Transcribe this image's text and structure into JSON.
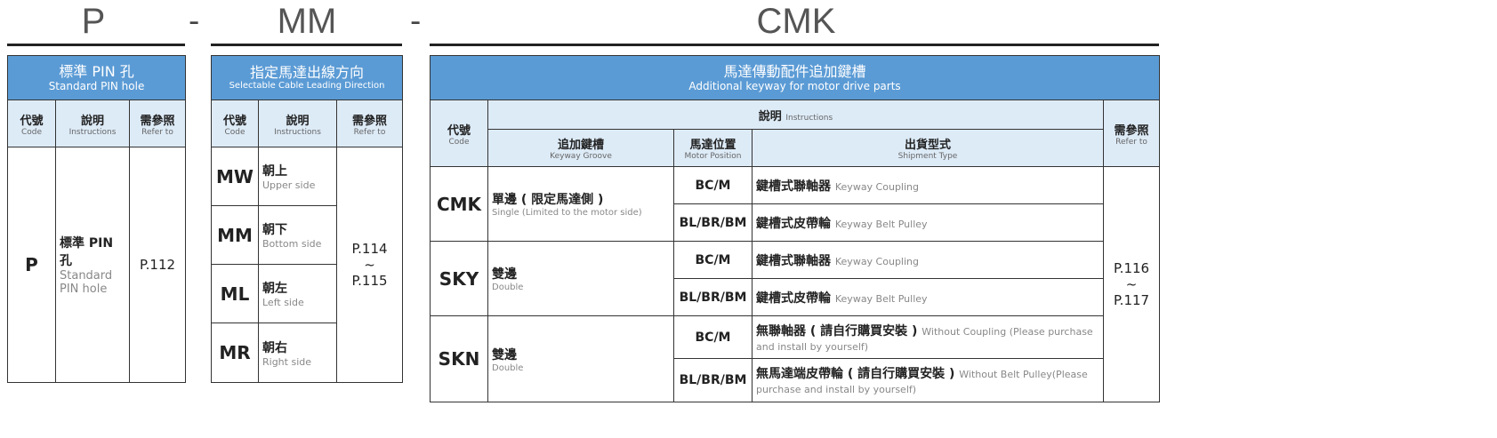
{
  "titles": {
    "p": "P",
    "mm": "MM",
    "cmk": "CMK",
    "dash": "-"
  },
  "t1": {
    "title_zh": "標準 PIN 孔",
    "title_en": "Standard PIN hole",
    "cols": [
      {
        "zh": "代號",
        "en": "Code"
      },
      {
        "zh": "說明",
        "en": "Instructions"
      },
      {
        "zh": "需參照",
        "en": "Refer to"
      }
    ],
    "row": {
      "code": "P",
      "zh": "標準 PIN 孔",
      "en": "Standard PIN hole",
      "ref": "P.112"
    }
  },
  "t2": {
    "title_zh": "指定馬達出線方向",
    "title_en": "Selectable Cable Leading Direction",
    "cols": [
      {
        "zh": "代號",
        "en": "Code"
      },
      {
        "zh": "說明",
        "en": "Instructions"
      },
      {
        "zh": "需參照",
        "en": "Refer to"
      }
    ],
    "rows": [
      {
        "code": "MW",
        "zh": "朝上",
        "en": "Upper side"
      },
      {
        "code": "MM",
        "zh": "朝下",
        "en": "Bottom side"
      },
      {
        "code": "ML",
        "zh": "朝左",
        "en": "Left side"
      },
      {
        "code": "MR",
        "zh": "朝右",
        "en": "Right side"
      }
    ],
    "ref": {
      "a": "P.114",
      "b": "~",
      "c": "P.115"
    }
  },
  "t3": {
    "title_zh": "馬達傳動配件追加鍵槽",
    "title_en": "Additional keyway for motor drive parts",
    "code": {
      "zh": "代號",
      "en": "Code"
    },
    "instr": {
      "zh": "說明",
      "en": "Instructions"
    },
    "refer": {
      "zh": "需參照",
      "en": "Refer to"
    },
    "sub": [
      {
        "zh": "追加鍵槽",
        "en": "Keyway Groove"
      },
      {
        "zh": "馬達位置",
        "en": "Motor Position"
      },
      {
        "zh": "出貨型式",
        "en": "Shipment Type"
      }
    ],
    "groups": [
      {
        "code": "CMK",
        "zh": "單邊 ( 限定馬達側 )",
        "en": "Single (Limited to the motor side)",
        "rows": [
          {
            "pos": "BC/M",
            "zh": "鍵槽式聯軸器",
            "en": "Keyway Coupling"
          },
          {
            "pos": "BL/BR/BM",
            "zh": "鍵槽式皮帶輪",
            "en": "Keyway Belt Pulley"
          }
        ]
      },
      {
        "code": "SKY",
        "zh": "雙邊",
        "en": "Double",
        "rows": [
          {
            "pos": "BC/M",
            "zh": "鍵槽式聯軸器",
            "en": "Keyway Coupling"
          },
          {
            "pos": "BL/BR/BM",
            "zh": "鍵槽式皮帶輪",
            "en": "Keyway Belt Pulley"
          }
        ]
      },
      {
        "code": "SKN",
        "zh": "雙邊",
        "en": "Double",
        "rows": [
          {
            "pos": "BC/M",
            "zh": "無聯軸器 ( 請自行購買安裝 )",
            "en": "Without Coupling (Please purchase and install by yourself)"
          },
          {
            "pos": "BL/BR/BM",
            "zh": "無馬達端皮帶輪 ( 請自行購買安裝 )",
            "en": "Without Belt Pulley(Please purchase and install by yourself)"
          }
        ]
      }
    ],
    "ref": {
      "a": "P.116",
      "b": "~",
      "c": "P.117"
    }
  },
  "colors": {
    "header": "#5b9bd5",
    "subheader": "#ddebf7"
  }
}
